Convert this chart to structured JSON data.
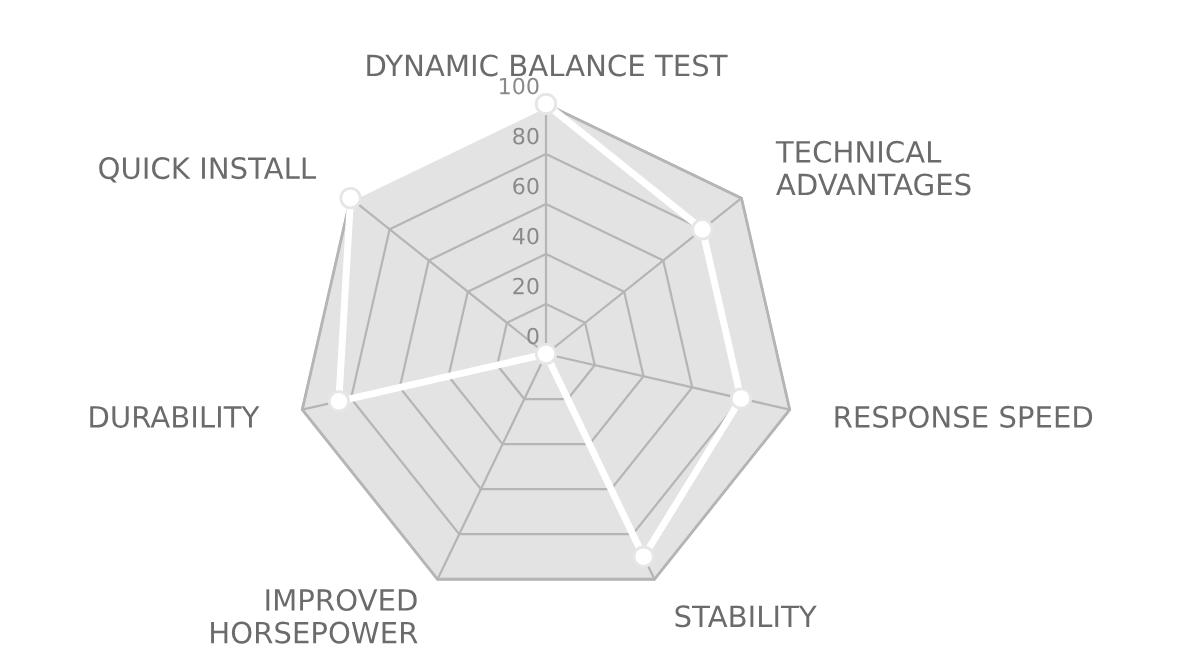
{
  "chart_data": {
    "type": "radar",
    "categories": [
      "DYNAMIC BALANCE TEST",
      "TECHNICAL\nADVANTAGES",
      "RESPONSE SPEED",
      "STABILITY",
      "IMPROVED\nHORSEPOWER",
      "DURABILITY",
      "QUICK INSTALL"
    ],
    "series": [
      {
        "color": "#ffffff",
        "values": [
          100,
          80,
          80,
          90,
          0,
          85,
          100
        ]
      }
    ],
    "ylim": [
      0,
      100
    ],
    "yticks": [
      0,
      20,
      40,
      60,
      80,
      100
    ],
    "marker": "circle",
    "line_style": "solid",
    "grid": true
  }
}
